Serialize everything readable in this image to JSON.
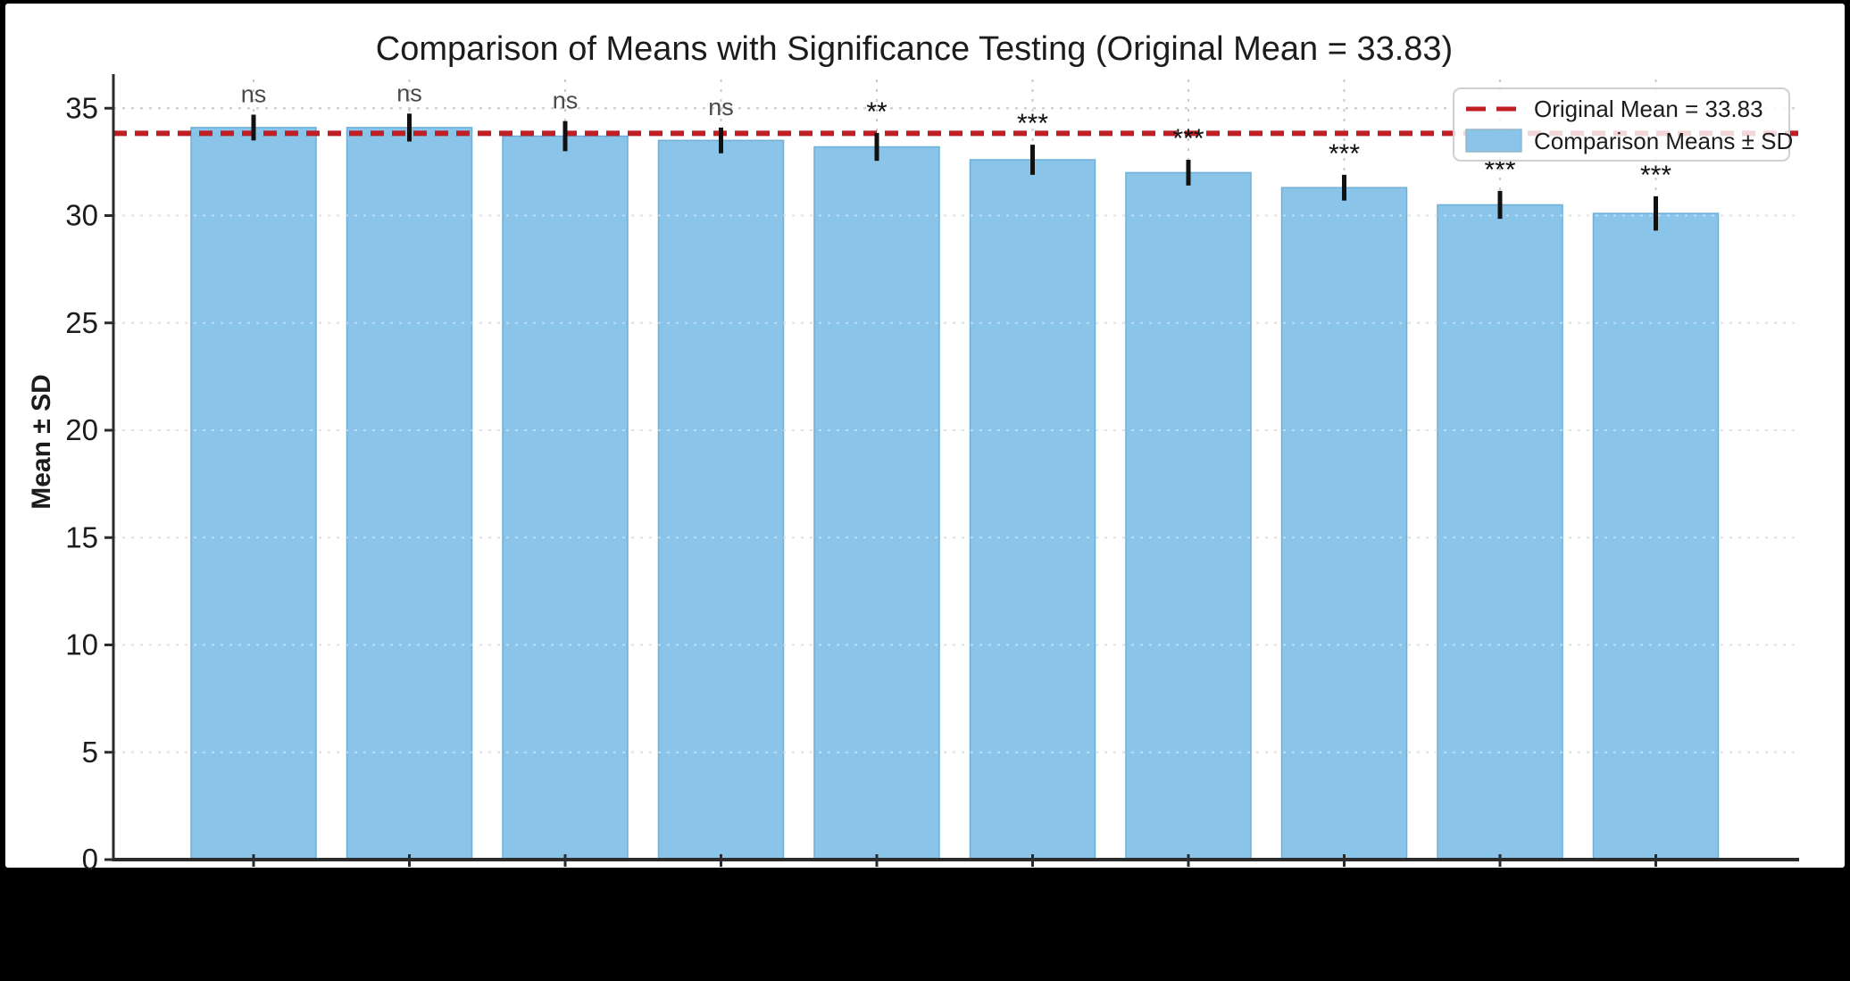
{
  "chart_data": {
    "type": "bar",
    "title": "Comparison of Means with Significance Testing (Original Mean = 33.83)",
    "ylabel": "Mean ± SD",
    "xlabel": "",
    "n_bars": 10,
    "categories": [
      "",
      "",
      "",
      "",
      "",
      "",
      "",
      "",
      "",
      ""
    ],
    "x_tick_labels_visible": false,
    "series": [
      {
        "name": "Comparison Means ± SD",
        "means": [
          34.1,
          34.1,
          33.7,
          33.5,
          33.2,
          32.6,
          32.0,
          31.3,
          30.5,
          30.1
        ],
        "sds": [
          0.6,
          0.65,
          0.7,
          0.6,
          0.65,
          0.7,
          0.6,
          0.6,
          0.65,
          0.8
        ],
        "significance": [
          "ns",
          "ns",
          "ns",
          "ns",
          "**",
          "***",
          "***",
          "***",
          "***",
          "***"
        ]
      }
    ],
    "reference_line": {
      "label": "Original Mean = 33.83",
      "value": 33.83,
      "style": "dashed"
    },
    "yticks": [
      0,
      5,
      10,
      15,
      20,
      25,
      30,
      35
    ],
    "ylim": [
      0,
      36.6
    ],
    "grid": "dotted, horizontal and vertical",
    "legend": {
      "position": "upper-right",
      "entries": [
        {
          "label": "Original Mean = 33.83",
          "marker": "dashed-line"
        },
        {
          "label": "Comparison Means ± SD",
          "marker": "filled-patch"
        }
      ]
    },
    "colors": {
      "bar_fill": "#8AC4E8",
      "bar_edge": "#6FAFD6",
      "reference_line": "#BE1E24",
      "error_bar": "#111111",
      "ns_label": "#4a4a4a",
      "asterisk_label": "#111111",
      "grid_line": "#c9c9c9",
      "grid_line_over_bars": "rgba(255,255,255,0.45)",
      "axis": "#2b2b2b",
      "tick_label": "#1c1c1c",
      "frame_background": "#000000",
      "plot_background": "#ffffff",
      "legend_border": "#cfcfcf"
    }
  }
}
